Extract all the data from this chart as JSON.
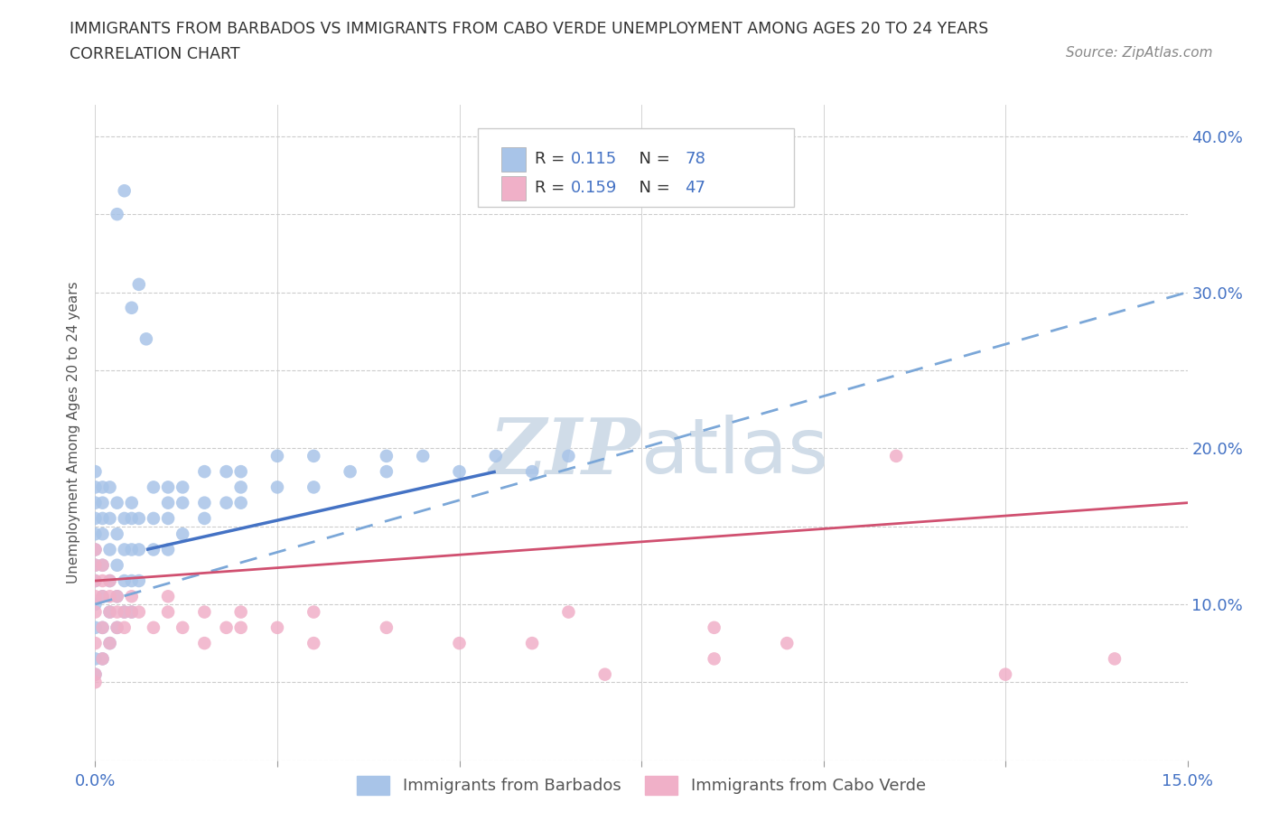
{
  "title_line1": "IMMIGRANTS FROM BARBADOS VS IMMIGRANTS FROM CABO VERDE UNEMPLOYMENT AMONG AGES 20 TO 24 YEARS",
  "title_line2": "CORRELATION CHART",
  "source_text": "Source: ZipAtlas.com",
  "ylabel": "Unemployment Among Ages 20 to 24 years",
  "xlim": [
    0.0,
    0.15
  ],
  "ylim": [
    0.0,
    0.42
  ],
  "barbados_color": "#a8c4e8",
  "cabo_verde_color": "#f0b0c8",
  "barbados_line_color": "#4472c4",
  "cabo_verde_line_color": "#d05070",
  "dashed_line_color": "#7ba7d8",
  "watermark_color": "#d0dce8",
  "barbados_R": "0.115",
  "barbados_N": "78",
  "cabo_verde_R": "0.159",
  "cabo_verde_N": "47",
  "barbados_solid_trend": [
    0.007,
    0.135,
    0.055,
    0.185
  ],
  "barbados_dashed_trend": [
    0.0,
    0.1,
    0.15,
    0.3
  ],
  "cabo_verde_trend": [
    0.0,
    0.115,
    0.15,
    0.165
  ],
  "barbados_x": [
    0.0,
    0.0,
    0.0,
    0.0,
    0.0,
    0.0,
    0.0,
    0.0,
    0.0,
    0.0,
    0.0,
    0.0,
    0.001,
    0.001,
    0.001,
    0.001,
    0.001,
    0.001,
    0.001,
    0.001,
    0.002,
    0.002,
    0.002,
    0.002,
    0.002,
    0.002,
    0.003,
    0.003,
    0.003,
    0.003,
    0.003,
    0.004,
    0.004,
    0.004,
    0.004,
    0.005,
    0.005,
    0.005,
    0.005,
    0.005,
    0.006,
    0.006,
    0.006,
    0.008,
    0.008,
    0.008,
    0.01,
    0.01,
    0.01,
    0.01,
    0.012,
    0.012,
    0.012,
    0.015,
    0.015,
    0.015,
    0.018,
    0.018,
    0.02,
    0.02,
    0.02,
    0.025,
    0.025,
    0.03,
    0.03,
    0.035,
    0.04,
    0.04,
    0.045,
    0.05,
    0.055,
    0.06,
    0.065,
    0.003,
    0.004,
    0.005,
    0.006,
    0.007
  ],
  "barbados_y": [
    0.055,
    0.065,
    0.085,
    0.1,
    0.115,
    0.125,
    0.135,
    0.145,
    0.155,
    0.165,
    0.175,
    0.185,
    0.065,
    0.085,
    0.105,
    0.125,
    0.145,
    0.155,
    0.165,
    0.175,
    0.075,
    0.095,
    0.115,
    0.135,
    0.155,
    0.175,
    0.085,
    0.105,
    0.125,
    0.145,
    0.165,
    0.095,
    0.115,
    0.135,
    0.155,
    0.095,
    0.115,
    0.135,
    0.155,
    0.165,
    0.115,
    0.135,
    0.155,
    0.135,
    0.155,
    0.175,
    0.135,
    0.155,
    0.165,
    0.175,
    0.145,
    0.165,
    0.175,
    0.155,
    0.165,
    0.185,
    0.165,
    0.185,
    0.165,
    0.175,
    0.185,
    0.175,
    0.195,
    0.175,
    0.195,
    0.185,
    0.185,
    0.195,
    0.195,
    0.185,
    0.195,
    0.185,
    0.195,
    0.35,
    0.365,
    0.29,
    0.305,
    0.27
  ],
  "cabo_verde_x": [
    0.0,
    0.0,
    0.0,
    0.0,
    0.0,
    0.0,
    0.0,
    0.0,
    0.001,
    0.001,
    0.001,
    0.001,
    0.001,
    0.002,
    0.002,
    0.002,
    0.002,
    0.003,
    0.003,
    0.003,
    0.004,
    0.004,
    0.005,
    0.005,
    0.006,
    0.008,
    0.01,
    0.01,
    0.012,
    0.015,
    0.015,
    0.018,
    0.02,
    0.02,
    0.025,
    0.03,
    0.03,
    0.04,
    0.05,
    0.06,
    0.065,
    0.07,
    0.085,
    0.085,
    0.095,
    0.11,
    0.125,
    0.14
  ],
  "cabo_verde_y": [
    0.055,
    0.075,
    0.095,
    0.105,
    0.115,
    0.125,
    0.135,
    0.05,
    0.065,
    0.085,
    0.105,
    0.115,
    0.125,
    0.075,
    0.095,
    0.105,
    0.115,
    0.085,
    0.095,
    0.105,
    0.085,
    0.095,
    0.095,
    0.105,
    0.095,
    0.085,
    0.095,
    0.105,
    0.085,
    0.075,
    0.095,
    0.085,
    0.085,
    0.095,
    0.085,
    0.075,
    0.095,
    0.085,
    0.075,
    0.075,
    0.095,
    0.055,
    0.085,
    0.065,
    0.075,
    0.195,
    0.055,
    0.065
  ]
}
